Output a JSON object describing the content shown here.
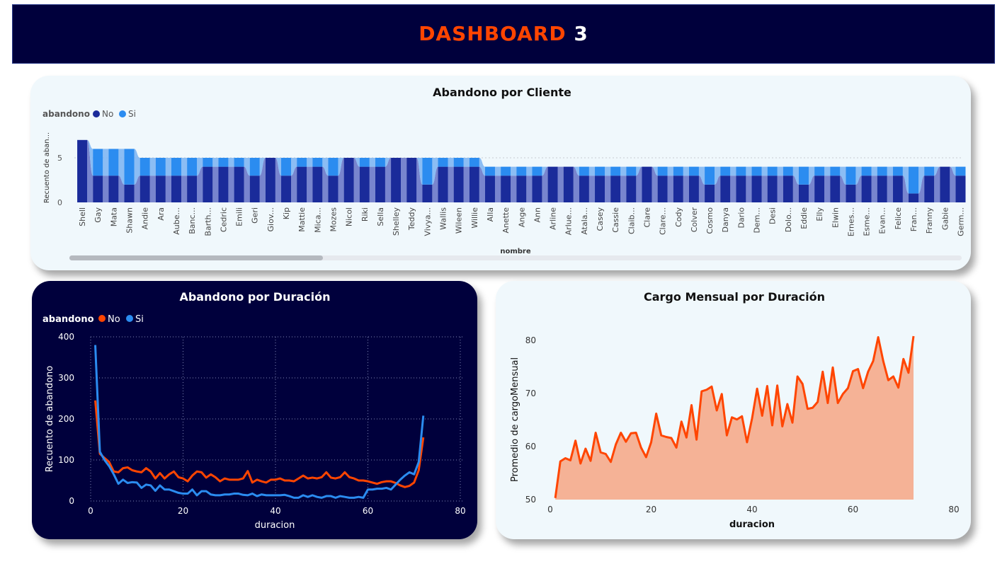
{
  "header": {
    "title_part1": "DASHBOARD",
    "title_part2": "3"
  },
  "colors": {
    "header_bg": "#00003c",
    "accent_orange": "#ff4500",
    "bar_no": "#1a2b9a",
    "bar_si": "#2b8cf0",
    "line_no": "#ff4500",
    "line_si": "#2b8cf0",
    "area_fill": "#f5b296"
  },
  "chart_data": [
    {
      "id": "abandono-por-cliente",
      "type": "bar",
      "stacked": true,
      "title": "Abandono por Cliente",
      "xlabel": "nombre",
      "ylabel": "Recuento de aban...",
      "legend": {
        "title": "abandono",
        "position": "top-left",
        "entries": [
          "No",
          "Si"
        ]
      },
      "ylim": [
        0,
        7
      ],
      "yticks": [
        0,
        5
      ],
      "grid": false,
      "categories": [
        "Shell",
        "Gay",
        "Mata",
        "Shawn",
        "Andie",
        "Ara",
        "Aube...",
        "Banc...",
        "Barth...",
        "Cedric",
        "Emili",
        "Geri",
        "Giov...",
        "Kip",
        "Mattie",
        "Mica...",
        "Mozes",
        "Nicol",
        "Riki",
        "Sella",
        "Shelley",
        "Teddy",
        "Vivya...",
        "Wallis",
        "Wileen",
        "Willie",
        "Alla",
        "Anette",
        "Ange",
        "Ann",
        "Arline",
        "Arlue...",
        "Atala...",
        "Casey",
        "Cassie",
        "Claib...",
        "Clare",
        "Clare...",
        "Cody",
        "Colver",
        "Cosmo",
        "Danya",
        "Dario",
        "Dem...",
        "Desi",
        "Dolo...",
        "Eddie",
        "Elly",
        "Elwin",
        "Ernes...",
        "Esme...",
        "Evan...",
        "Felice",
        "Fran...",
        "Franny",
        "Gabie",
        "Germ..."
      ],
      "series": [
        {
          "name": "No",
          "values": [
            7,
            3,
            3,
            2,
            3,
            3,
            3,
            3,
            4,
            4,
            4,
            3,
            5,
            3,
            4,
            4,
            3,
            5,
            4,
            4,
            5,
            5,
            2,
            4,
            4,
            4,
            3,
            3,
            3,
            3,
            4,
            4,
            3,
            3,
            3,
            3,
            4,
            3,
            3,
            3,
            2,
            3,
            3,
            3,
            3,
            3,
            2,
            3,
            3,
            2,
            3,
            3,
            3,
            1,
            3,
            4,
            3
          ]
        },
        {
          "name": "Si",
          "values": [
            0,
            3,
            3,
            4,
            2,
            2,
            2,
            2,
            1,
            1,
            1,
            2,
            0,
            2,
            1,
            1,
            2,
            0,
            1,
            1,
            0,
            0,
            3,
            1,
            1,
            1,
            1,
            1,
            1,
            1,
            0,
            0,
            1,
            1,
            1,
            1,
            0,
            1,
            1,
            1,
            2,
            1,
            1,
            1,
            1,
            1,
            2,
            1,
            1,
            2,
            1,
            1,
            1,
            3,
            1,
            0,
            1
          ]
        }
      ]
    },
    {
      "id": "abandono-por-duracion",
      "type": "line",
      "title": "Abandono por Duración",
      "xlabel": "duracion",
      "ylabel": "Recuento de abandono",
      "legend": {
        "title": "abandono",
        "position": "top-left",
        "entries": [
          "No",
          "Si"
        ]
      },
      "xlim": [
        0,
        80
      ],
      "ylim": [
        0,
        400
      ],
      "xticks": [
        0,
        20,
        40,
        60,
        80
      ],
      "yticks": [
        0,
        100,
        200,
        300,
        400
      ],
      "grid": true,
      "x": [
        1,
        2,
        3,
        4,
        5,
        6,
        7,
        8,
        9,
        10,
        11,
        12,
        13,
        14,
        15,
        16,
        17,
        18,
        19,
        20,
        21,
        22,
        23,
        24,
        25,
        26,
        27,
        28,
        29,
        30,
        31,
        32,
        33,
        34,
        35,
        36,
        37,
        38,
        39,
        40,
        41,
        42,
        43,
        44,
        45,
        46,
        47,
        48,
        49,
        50,
        51,
        52,
        53,
        54,
        55,
        56,
        57,
        58,
        59,
        60,
        61,
        62,
        63,
        64,
        65,
        66,
        67,
        68,
        69,
        70,
        71,
        72
      ],
      "series": [
        {
          "name": "No",
          "values": [
            245,
            115,
            105,
            95,
            72,
            70,
            80,
            82,
            75,
            72,
            70,
            80,
            72,
            55,
            68,
            55,
            65,
            72,
            58,
            55,
            48,
            62,
            72,
            70,
            57,
            65,
            58,
            48,
            55,
            52,
            52,
            52,
            55,
            73,
            45,
            52,
            48,
            45,
            52,
            52,
            55,
            50,
            50,
            48,
            55,
            62,
            55,
            57,
            55,
            58,
            70,
            57,
            55,
            58,
            70,
            58,
            55,
            50,
            50,
            48,
            45,
            42,
            46,
            48,
            48,
            44,
            38,
            34,
            37,
            45,
            75,
            155
          ]
        },
        {
          "name": "Si",
          "values": [
            380,
            120,
            100,
            85,
            65,
            42,
            52,
            44,
            46,
            45,
            32,
            40,
            38,
            25,
            38,
            28,
            28,
            24,
            20,
            18,
            18,
            28,
            14,
            24,
            24,
            16,
            14,
            14,
            16,
            16,
            18,
            18,
            15,
            14,
            18,
            12,
            16,
            14,
            14,
            14,
            14,
            15,
            12,
            8,
            8,
            14,
            10,
            14,
            10,
            8,
            12,
            12,
            8,
            12,
            10,
            8,
            8,
            10,
            8,
            28,
            28,
            30,
            30,
            32,
            28,
            40,
            52,
            62,
            70,
            65,
            95,
            208
          ]
        }
      ]
    },
    {
      "id": "cargo-mensual-por-duracion",
      "type": "area",
      "title": "Cargo Mensual por Duración",
      "xlabel": "duracion",
      "ylabel": "Promedio de cargoMensual",
      "xlim": [
        0,
        80
      ],
      "ylim": [
        50,
        82
      ],
      "xticks": [
        0,
        20,
        40,
        60,
        80
      ],
      "yticks": [
        50,
        60,
        70,
        80
      ],
      "grid": false,
      "x": [
        1,
        2,
        3,
        4,
        5,
        6,
        7,
        8,
        9,
        10,
        11,
        12,
        13,
        14,
        15,
        16,
        17,
        18,
        19,
        20,
        21,
        22,
        23,
        24,
        25,
        26,
        27,
        28,
        29,
        30,
        31,
        32,
        33,
        34,
        35,
        36,
        37,
        38,
        39,
        40,
        41,
        42,
        43,
        44,
        45,
        46,
        47,
        48,
        49,
        50,
        51,
        52,
        53,
        54,
        55,
        56,
        57,
        58,
        59,
        60,
        61,
        62,
        63,
        64,
        65,
        66,
        67,
        68,
        69,
        70,
        71,
        72
      ],
      "series": [
        {
          "name": "",
          "values": [
            50.3,
            57.2,
            57.8,
            57.4,
            61.1,
            56.8,
            59.6,
            57.3,
            62.6,
            58.9,
            58.6,
            57.1,
            60.4,
            62.6,
            60.9,
            62.5,
            62.6,
            59.8,
            58.0,
            60.8,
            66.2,
            62.1,
            61.8,
            61.6,
            59.8,
            64.7,
            61.7,
            67.8,
            61.3,
            70.4,
            70.7,
            71.3,
            66.8,
            69.9,
            62.1,
            65.5,
            65.1,
            65.7,
            60.8,
            65.3,
            70.9,
            65.8,
            71.4,
            64.0,
            71.5,
            63.8,
            68.0,
            64.5,
            73.2,
            71.8,
            67.1,
            67.3,
            68.4,
            74.1,
            68.2,
            74.9,
            68.2,
            69.9,
            71.0,
            74.2,
            74.6,
            71.0,
            74.1,
            76.1,
            80.6,
            76.1,
            72.5,
            73.2,
            71.1,
            76.5,
            73.9,
            80.8
          ]
        }
      ]
    }
  ]
}
